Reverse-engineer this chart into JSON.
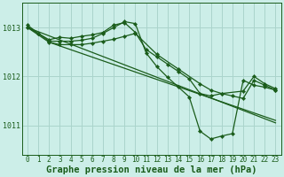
{
  "title": "Graphe pression niveau de la mer (hPa)",
  "background_color": "#cceee8",
  "grid_color": "#aad4cc",
  "line_color": "#1a5c1a",
  "marker_color": "#1a5c1a",
  "xlim": [
    -0.5,
    23.5
  ],
  "ylim": [
    1010.4,
    1013.5
  ],
  "yticks": [
    1011,
    1012,
    1013
  ],
  "xticks": [
    0,
    1,
    2,
    3,
    4,
    5,
    6,
    7,
    8,
    9,
    10,
    11,
    12,
    13,
    14,
    15,
    16,
    17,
    18,
    19,
    20,
    21,
    22,
    23
  ],
  "series": [
    {
      "x": [
        0,
        1,
        2,
        3,
        4,
        5,
        6,
        7,
        8,
        9,
        10,
        11,
        12,
        13,
        14,
        15,
        16,
        17,
        18,
        20,
        21,
        22,
        23
      ],
      "y": [
        1013.0,
        1012.88,
        1012.75,
        1012.8,
        1012.78,
        1012.82,
        1012.85,
        1012.9,
        1013.05,
        1013.1,
        1012.9,
        1012.55,
        1012.4,
        1012.25,
        1012.1,
        1011.95,
        1011.65,
        1011.6,
        1011.65,
        1011.7,
        1012.0,
        1011.85,
        1011.75
      ]
    },
    {
      "x": [
        0,
        2,
        3,
        4,
        5,
        6,
        7,
        8,
        9,
        10,
        12,
        14,
        16,
        17,
        18,
        19,
        20,
        21,
        22,
        23
      ],
      "y": [
        1013.0,
        1012.7,
        1012.65,
        1012.65,
        1012.65,
        1012.68,
        1012.72,
        1012.76,
        1012.82,
        1012.88,
        1012.45,
        1012.15,
        1011.85,
        1011.72,
        1011.65,
        1011.6,
        1011.55,
        1011.92,
        1011.82,
        1011.72
      ]
    },
    {
      "x": [
        0,
        23
      ],
      "y": [
        1013.0,
        1011.05
      ]
    },
    {
      "comment": "second diagonal - from ~1012.7 x=2 to ~1011.1 x=23",
      "x": [
        2,
        23
      ],
      "y": [
        1012.7,
        1011.1
      ]
    },
    {
      "x": [
        0,
        1,
        2,
        3,
        4,
        5,
        6,
        7,
        8,
        9,
        10,
        11,
        12,
        13,
        14,
        15,
        16,
        17,
        18,
        19,
        20,
        21,
        22,
        23
      ],
      "y": [
        1013.05,
        1012.88,
        1012.72,
        1012.72,
        1012.72,
        1012.74,
        1012.78,
        1012.88,
        1013.0,
        1013.12,
        1013.08,
        1012.48,
        1012.2,
        1011.98,
        1011.78,
        1011.58,
        1010.88,
        1010.72,
        1010.78,
        1010.83,
        1011.92,
        1011.82,
        1011.78,
        1011.72
      ]
    }
  ],
  "tick_fontsize": 5.5,
  "label_fontsize": 7.5
}
